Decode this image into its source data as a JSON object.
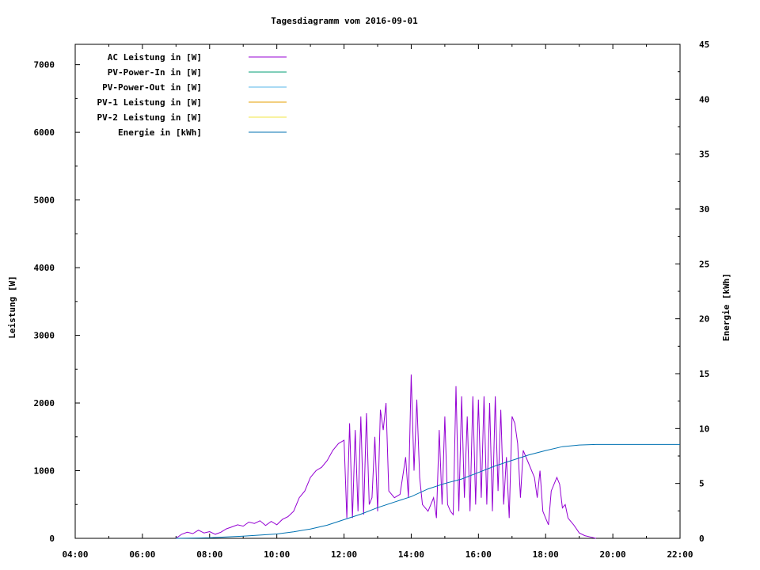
{
  "chart_data": {
    "type": "line",
    "title": "Tagesdiagramm vom 2016-09-01",
    "ylabel": "Leistung [W]",
    "y2label": "Energie [kWh]",
    "xlabel": "",
    "x_ticks": [
      "04:00",
      "06:00",
      "08:00",
      "10:00",
      "12:00",
      "14:00",
      "16:00",
      "18:00",
      "20:00",
      "22:00"
    ],
    "xlim": [
      "04:00",
      "22:00"
    ],
    "ylim": [
      0,
      7300
    ],
    "y2lim": [
      0,
      45
    ],
    "y_ticks": [
      0,
      1000,
      2000,
      3000,
      4000,
      5000,
      6000,
      7000
    ],
    "y2_ticks": [
      0,
      5,
      10,
      15,
      20,
      25,
      30,
      35,
      40,
      45
    ],
    "legend_position": "top-left",
    "grid": false,
    "series": [
      {
        "name": "AC Leistung in [W]",
        "color": "#9400d3",
        "axis": "left",
        "points": [
          [
            "07:00",
            0
          ],
          [
            "07:10",
            60
          ],
          [
            "07:20",
            90
          ],
          [
            "07:30",
            70
          ],
          [
            "07:40",
            120
          ],
          [
            "07:50",
            80
          ],
          [
            "08:00",
            100
          ],
          [
            "08:10",
            60
          ],
          [
            "08:20",
            90
          ],
          [
            "08:30",
            140
          ],
          [
            "08:40",
            170
          ],
          [
            "08:50",
            200
          ],
          [
            "09:00",
            180
          ],
          [
            "09:10",
            240
          ],
          [
            "09:20",
            220
          ],
          [
            "09:30",
            260
          ],
          [
            "09:40",
            190
          ],
          [
            "09:50",
            250
          ],
          [
            "10:00",
            200
          ],
          [
            "10:10",
            280
          ],
          [
            "10:20",
            320
          ],
          [
            "10:30",
            400
          ],
          [
            "10:40",
            600
          ],
          [
            "10:50",
            700
          ],
          [
            "11:00",
            900
          ],
          [
            "11:10",
            1000
          ],
          [
            "11:20",
            1050
          ],
          [
            "11:30",
            1150
          ],
          [
            "11:40",
            1300
          ],
          [
            "11:50",
            1400
          ],
          [
            "12:00",
            1450
          ],
          [
            "12:05",
            300
          ],
          [
            "12:10",
            1700
          ],
          [
            "12:15",
            300
          ],
          [
            "12:20",
            1600
          ],
          [
            "12:25",
            400
          ],
          [
            "12:30",
            1800
          ],
          [
            "12:35",
            350
          ],
          [
            "12:40",
            1850
          ],
          [
            "12:45",
            500
          ],
          [
            "12:50",
            600
          ],
          [
            "12:55",
            1500
          ],
          [
            "13:00",
            400
          ],
          [
            "13:05",
            1900
          ],
          [
            "13:10",
            1600
          ],
          [
            "13:15",
            2000
          ],
          [
            "13:20",
            700
          ],
          [
            "13:30",
            600
          ],
          [
            "13:40",
            650
          ],
          [
            "13:50",
            1200
          ],
          [
            "13:55",
            600
          ],
          [
            "14:00",
            2420
          ],
          [
            "14:05",
            1000
          ],
          [
            "14:10",
            2050
          ],
          [
            "14:15",
            900
          ],
          [
            "14:20",
            500
          ],
          [
            "14:30",
            400
          ],
          [
            "14:40",
            600
          ],
          [
            "14:45",
            300
          ],
          [
            "14:50",
            1600
          ],
          [
            "14:55",
            500
          ],
          [
            "15:00",
            1800
          ],
          [
            "15:05",
            500
          ],
          [
            "15:10",
            400
          ],
          [
            "15:15",
            350
          ],
          [
            "15:20",
            2250
          ],
          [
            "15:25",
            400
          ],
          [
            "15:30",
            2100
          ],
          [
            "15:35",
            600
          ],
          [
            "15:40",
            1800
          ],
          [
            "15:45",
            400
          ],
          [
            "15:50",
            2100
          ],
          [
            "15:55",
            500
          ],
          [
            "16:00",
            2050
          ],
          [
            "16:05",
            600
          ],
          [
            "16:10",
            2100
          ],
          [
            "16:15",
            500
          ],
          [
            "16:20",
            2000
          ],
          [
            "16:25",
            400
          ],
          [
            "16:30",
            2100
          ],
          [
            "16:35",
            700
          ],
          [
            "16:40",
            1900
          ],
          [
            "16:45",
            500
          ],
          [
            "16:50",
            1200
          ],
          [
            "16:55",
            300
          ],
          [
            "17:00",
            1800
          ],
          [
            "17:05",
            1700
          ],
          [
            "17:10",
            1400
          ],
          [
            "17:15",
            600
          ],
          [
            "17:20",
            1300
          ],
          [
            "17:30",
            1100
          ],
          [
            "17:40",
            900
          ],
          [
            "17:45",
            600
          ],
          [
            "17:50",
            1000
          ],
          [
            "17:55",
            400
          ],
          [
            "18:00",
            300
          ],
          [
            "18:05",
            200
          ],
          [
            "18:10",
            700
          ],
          [
            "18:20",
            900
          ],
          [
            "18:25",
            800
          ],
          [
            "18:30",
            450
          ],
          [
            "18:35",
            500
          ],
          [
            "18:40",
            300
          ],
          [
            "18:50",
            200
          ],
          [
            "19:00",
            80
          ],
          [
            "19:10",
            40
          ],
          [
            "19:20",
            20
          ],
          [
            "19:30",
            0
          ]
        ]
      },
      {
        "name": "PV-Power-In in [W]",
        "color": "#009e73",
        "axis": "left",
        "points": []
      },
      {
        "name": "PV-Power-Out in [W]",
        "color": "#56b4e9",
        "axis": "left",
        "points": []
      },
      {
        "name": "PV-1 Leistung in [W]",
        "color": "#e69f00",
        "axis": "left",
        "points": []
      },
      {
        "name": "PV-2 Leistung in [W]",
        "color": "#f0e442",
        "axis": "left",
        "points": []
      },
      {
        "name": "Energie in [kWh]",
        "color": "#0072b2",
        "axis": "right",
        "points": [
          [
            "07:00",
            0
          ],
          [
            "08:00",
            0.05
          ],
          [
            "09:00",
            0.2
          ],
          [
            "10:00",
            0.4
          ],
          [
            "10:30",
            0.6
          ],
          [
            "11:00",
            0.85
          ],
          [
            "11:30",
            1.2
          ],
          [
            "12:00",
            1.7
          ],
          [
            "12:30",
            2.2
          ],
          [
            "13:00",
            2.8
          ],
          [
            "13:30",
            3.3
          ],
          [
            "14:00",
            3.8
          ],
          [
            "14:30",
            4.5
          ],
          [
            "15:00",
            5.0
          ],
          [
            "15:30",
            5.4
          ],
          [
            "16:00",
            6.0
          ],
          [
            "16:30",
            6.6
          ],
          [
            "17:00",
            7.1
          ],
          [
            "17:30",
            7.6
          ],
          [
            "18:00",
            8.0
          ],
          [
            "18:30",
            8.35
          ],
          [
            "19:00",
            8.5
          ],
          [
            "19:30",
            8.55
          ],
          [
            "22:00",
            8.55
          ]
        ]
      }
    ]
  }
}
